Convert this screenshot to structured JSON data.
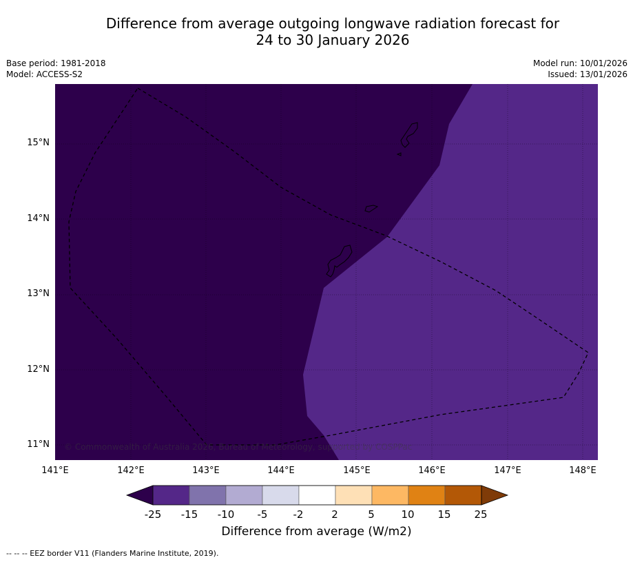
{
  "title": {
    "line1": "Difference from average outgoing longwave radiation forecast for",
    "line2": "24 to 30 January 2026"
  },
  "meta": {
    "base_period": "Base period: 1981-2018",
    "model": "Model: ACCESS-S2",
    "model_run": "Model run: 10/01/2026",
    "issued": "Issued: 13/01/2026"
  },
  "map": {
    "lat_labels": [
      "15°N",
      "14°N",
      "13°N",
      "12°N",
      "11°N"
    ],
    "lon_labels": [
      "141°E",
      "142°E",
      "143°E",
      "144°E",
      "145°E",
      "146°E",
      "147°E",
      "148°E"
    ],
    "copyright": "© Commonwealth of Australia 2026, Bureau of Meteorology, supported by COSPPac",
    "region_values": {
      "west_region": "-25 or below",
      "east_region": "-25 to -15"
    }
  },
  "colorbar": {
    "label": "Difference from average (W/m2)",
    "ticks": [
      "-25",
      "-15",
      "-10",
      "-5",
      "-2",
      "2",
      "5",
      "10",
      "15",
      "25"
    ],
    "colors": {
      "under": "#2d004b",
      "bins": [
        "#542788",
        "#8073ac",
        "#b2abd2",
        "#d8daeb",
        "#ffffff",
        "#fee0b6",
        "#fdb863",
        "#e08214",
        "#b35806"
      ],
      "over": "#7f3b08"
    }
  },
  "footer": {
    "legend": "-- -- -- EEZ border V11 (Flanders Marine Institute, 2019)."
  }
}
